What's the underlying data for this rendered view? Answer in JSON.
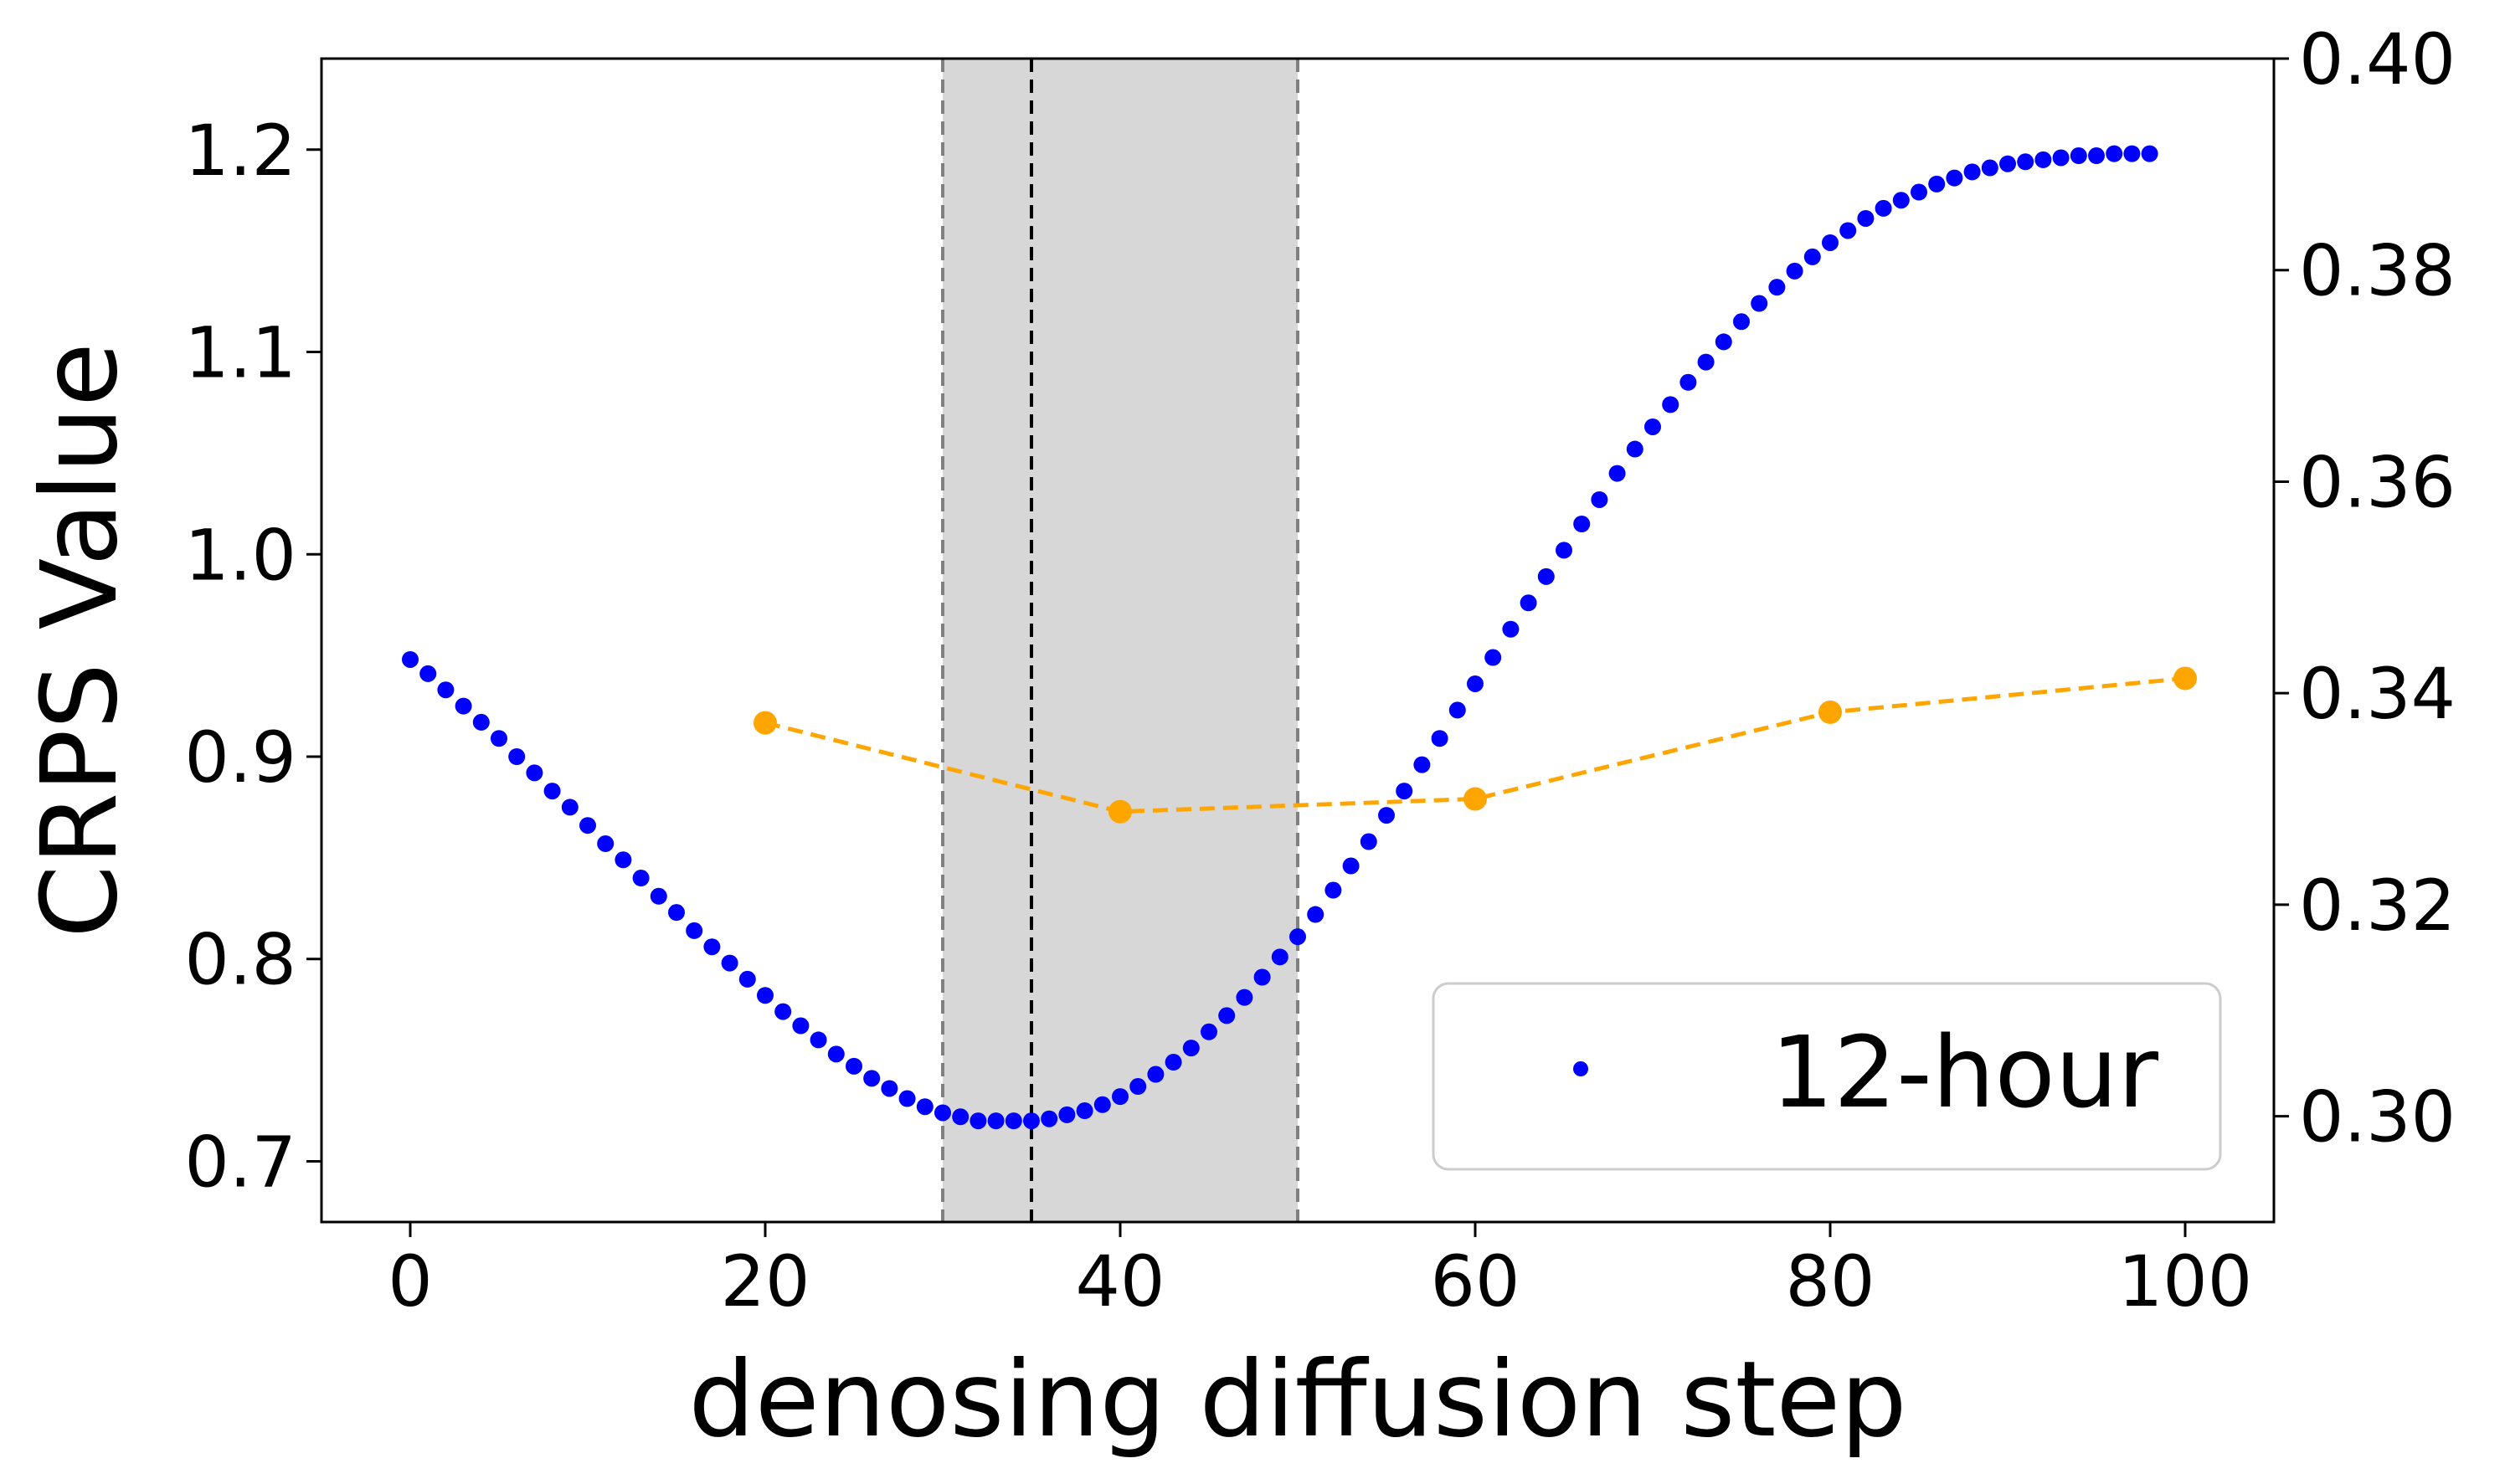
{
  "chart_data": {
    "type": "scatter",
    "xlabel": "denosing diffusion step",
    "ylabel": "CRPS Value",
    "xlim": [
      -5,
      105
    ],
    "ylim": [
      0.67,
      1.245
    ],
    "y2lim": [
      0.29,
      0.4
    ],
    "x_ticks": [
      0,
      20,
      40,
      60,
      80,
      100
    ],
    "y_ticks": [
      0.7,
      0.8,
      0.9,
      1.0,
      1.1,
      1.2
    ],
    "y2_ticks": [
      0.3,
      0.32,
      0.34,
      0.36,
      0.38,
      0.4
    ],
    "grid": false,
    "shaded_region": {
      "x_start": 30,
      "x_end": 50,
      "color": "#d7d7d7"
    },
    "vertical_lines": [
      {
        "x": 30,
        "color": "#808080",
        "style": "dashed"
      },
      {
        "x": 35,
        "color": "#000000",
        "style": "dashed"
      },
      {
        "x": 50,
        "color": "#808080",
        "style": "dashed"
      }
    ],
    "legend": {
      "position": "bottom-right"
    },
    "series": [
      {
        "name": "12-hour",
        "axis": "left",
        "color": "#0000ff",
        "marker": "dot",
        "x": [
          0,
          1,
          2,
          3,
          4,
          5,
          6,
          7,
          8,
          9,
          10,
          11,
          12,
          13,
          14,
          15,
          16,
          17,
          18,
          19,
          20,
          21,
          22,
          23,
          24,
          25,
          26,
          27,
          28,
          29,
          30,
          31,
          32,
          33,
          34,
          35,
          36,
          37,
          38,
          39,
          40,
          41,
          42,
          43,
          44,
          45,
          46,
          47,
          48,
          49,
          50,
          51,
          52,
          53,
          54,
          55,
          56,
          57,
          58,
          59,
          60,
          61,
          62,
          63,
          64,
          65,
          66,
          67,
          68,
          69,
          70,
          71,
          72,
          73,
          74,
          75,
          76,
          77,
          78,
          79,
          80,
          81,
          82,
          83,
          84,
          85,
          86,
          87,
          88,
          89,
          90,
          91,
          92,
          93,
          94,
          95,
          96,
          97,
          98
        ],
        "y": [
          0.948,
          0.941,
          0.933,
          0.925,
          0.917,
          0.909,
          0.9,
          0.892,
          0.883,
          0.875,
          0.866,
          0.857,
          0.849,
          0.84,
          0.831,
          0.823,
          0.814,
          0.806,
          0.798,
          0.79,
          0.782,
          0.774,
          0.767,
          0.76,
          0.753,
          0.747,
          0.741,
          0.736,
          0.731,
          0.727,
          0.724,
          0.722,
          0.72,
          0.72,
          0.72,
          0.72,
          0.721,
          0.723,
          0.725,
          0.728,
          0.732,
          0.737,
          0.743,
          0.749,
          0.756,
          0.764,
          0.772,
          0.781,
          0.791,
          0.801,
          0.811,
          0.822,
          0.834,
          0.846,
          0.858,
          0.871,
          0.883,
          0.896,
          0.909,
          0.923,
          0.936,
          0.949,
          0.963,
          0.976,
          0.989,
          1.002,
          1.015,
          1.027,
          1.04,
          1.052,
          1.063,
          1.074,
          1.085,
          1.095,
          1.105,
          1.115,
          1.124,
          1.132,
          1.14,
          1.147,
          1.154,
          1.16,
          1.166,
          1.171,
          1.175,
          1.179,
          1.183,
          1.186,
          1.189,
          1.191,
          1.193,
          1.194,
          1.195,
          1.196,
          1.197,
          1.197,
          1.198,
          1.198,
          1.198
        ]
      },
      {
        "axis": "right",
        "color": "#ffa500",
        "marker": "circle",
        "line_style": "dashed",
        "x": [
          20,
          40,
          60,
          80,
          100
        ],
        "y": [
          0.3372,
          0.3288,
          0.33,
          0.3382,
          0.3414
        ]
      }
    ]
  }
}
